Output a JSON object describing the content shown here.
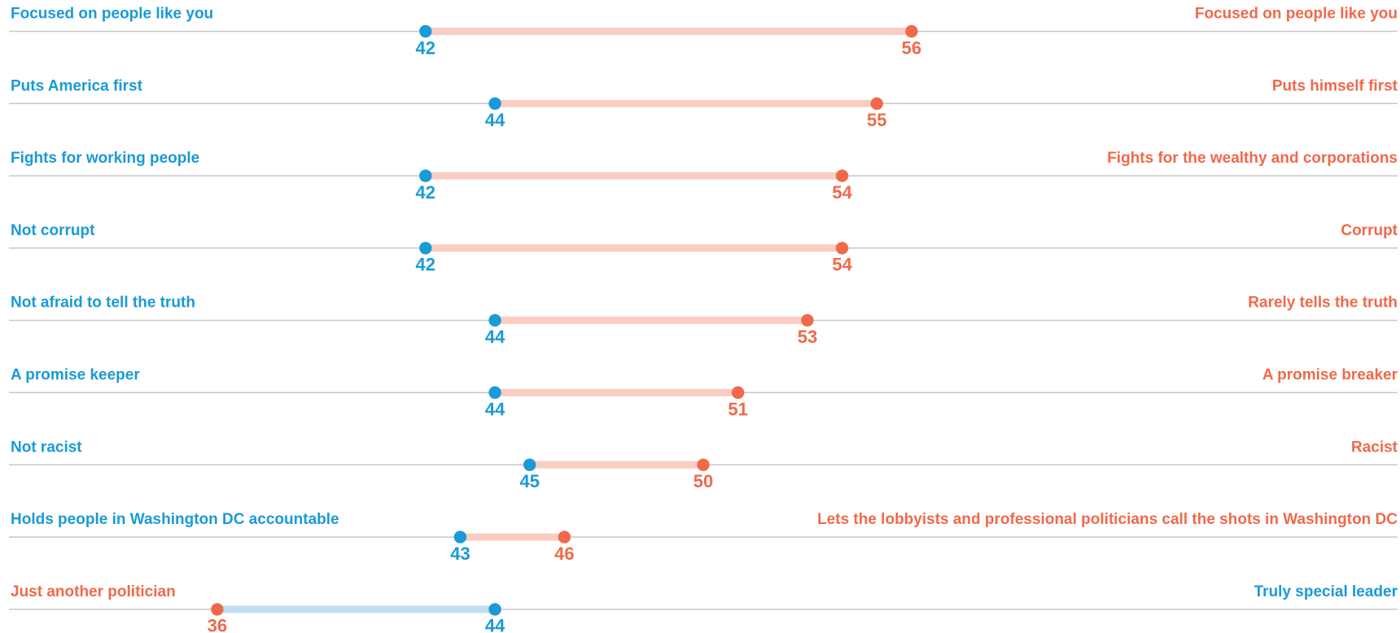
{
  "chart_data": {
    "type": "dumbbell",
    "left_labels": [
      "Focused on people like you",
      "Puts America first",
      "Fights for working people",
      "Not corrupt",
      "Not afraid to tell the truth",
      "A promise keeper",
      "Not racist",
      "Holds people in Washington DC accountable",
      "Just another politician"
    ],
    "right_labels": [
      "Focused on people like you",
      "Puts himself first",
      "Fights for the wealthy and corporations",
      "Corrupt",
      "Rarely tells the truth",
      "A promise breaker",
      "Racist",
      "Lets the lobbyists and professional politicians call the shots in Washington DC",
      "Truly special leader"
    ],
    "series": [
      {
        "color": "#1a9ad6",
        "bar_color": "#bfdff0",
        "values": [
          42,
          44,
          42,
          42,
          44,
          44,
          45,
          43,
          44
        ]
      },
      {
        "color": "#f0694b",
        "bar_color": "#f9cdc3",
        "values": [
          56,
          55,
          54,
          54,
          53,
          51,
          50,
          46,
          36
        ]
      }
    ],
    "xlim": [
      30,
      70
    ]
  }
}
